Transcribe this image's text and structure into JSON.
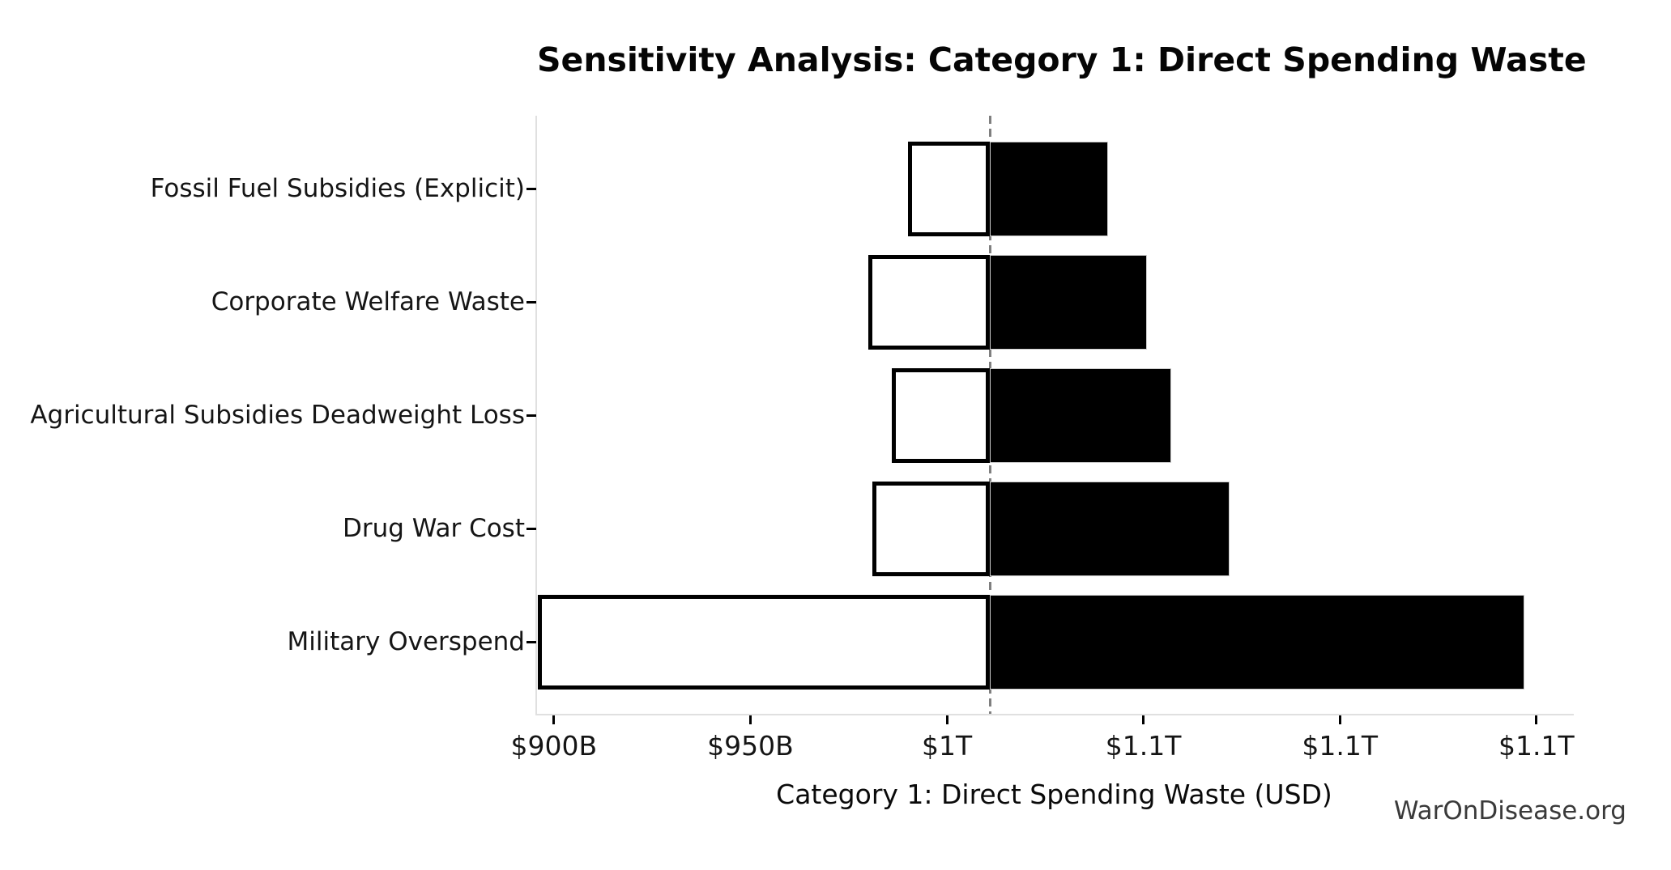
{
  "chart": {
    "title": "Sensitivity Analysis: Category 1: Direct Spending Waste",
    "xlabel": "Category 1: Direct Spending Waste (USD)",
    "watermark": "WarOnDisease.org"
  },
  "chart_data": {
    "type": "bar",
    "subtype": "tornado_sensitivity",
    "orientation": "horizontal",
    "title": "Sensitivity Analysis: Category 1: Direct Spending Waste",
    "xlabel": "Category 1: Direct Spending Waste (USD)",
    "unit": "billions USD",
    "baseline": 1011,
    "xlim": [
      895.7,
      1158.9
    ],
    "grid": false,
    "legend": "none",
    "x_ticks": [
      {
        "value": 900,
        "label": "$900B"
      },
      {
        "value": 950,
        "label": "$950B"
      },
      {
        "value": 1000,
        "label": "$1T"
      },
      {
        "value": 1050,
        "label": "$1.1T"
      },
      {
        "value": 1100,
        "label": "$1.1T"
      },
      {
        "value": 1150,
        "label": "$1.1T"
      }
    ],
    "series": [
      {
        "label": "Fossil Fuel Subsidies (Explicit)",
        "low": 990,
        "high": 1041
      },
      {
        "label": "Corporate Welfare Waste",
        "low": 980,
        "high": 1051
      },
      {
        "label": "Agricultural Subsidies Deadweight Loss",
        "low": 986,
        "high": 1057
      },
      {
        "label": "Drug War Cost",
        "low": 981,
        "high": 1072
      },
      {
        "label": "Military Overspend",
        "low": 896,
        "high": 1147
      }
    ],
    "colors": {
      "low_fill": "#ffffff",
      "low_edge": "#000000",
      "high_fill": "#000000",
      "high_edge": "#cccccc",
      "baseline_line": "#7f7f7f",
      "spine": "#e0e0e0",
      "tick": "#000000",
      "text": "#151515",
      "watermark": "#3a3a3a"
    }
  }
}
